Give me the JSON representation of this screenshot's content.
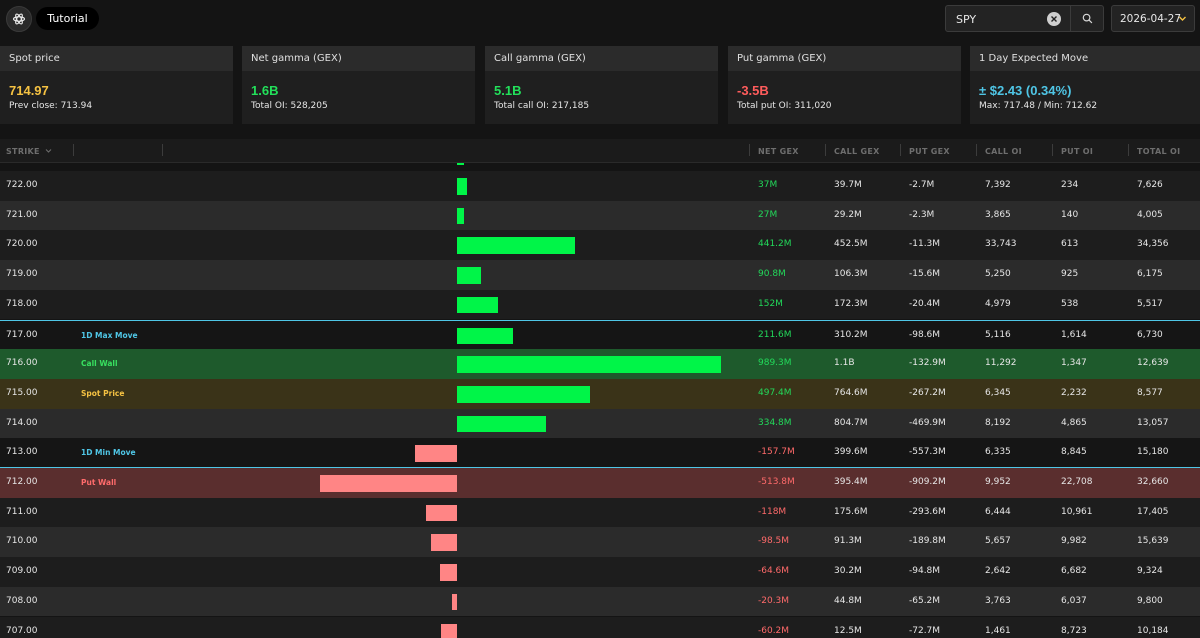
{
  "header": {
    "tutorial_label": "Tutorial",
    "search_value": "SPY",
    "date_value": "2026-04-27",
    "icons": [
      "logo-icon",
      "clear-icon",
      "search-icon",
      "chevron-down-icon"
    ]
  },
  "cards": [
    {
      "title": "Spot price",
      "value": "714.97",
      "sub": "Prev close: 713.94",
      "color": "#f5c242"
    },
    {
      "title": "Net gamma (GEX)",
      "value": "1.6B",
      "sub": "Total OI: 528,205",
      "color": "#22e05a"
    },
    {
      "title": "Call gamma (GEX)",
      "value": "5.1B",
      "sub": "Total call OI: 217,185",
      "color": "#22e05a"
    },
    {
      "title": "Put gamma (GEX)",
      "value": "-3.5B",
      "sub": "Total put OI: 311,020",
      "color": "#ff5c5c"
    },
    {
      "title": "1 Day Expected Move",
      "value": "± $2.43 (0.34%)",
      "sub": "Max: 717.48 / Min: 712.62",
      "color": "#4fc6e6"
    }
  ],
  "table": {
    "columns": [
      "STRIKE",
      "NET GEX",
      "CALL GEX",
      "PUT GEX",
      "CALL OI",
      "PUT OI",
      "TOTAL OI"
    ],
    "colors": {
      "positive": "#00f548",
      "negative": "#ff8585",
      "max_move": "#4fc6e6",
      "call_wall": "#38e060",
      "spot": "#f5c242",
      "put_wall": "#ff6b6b"
    },
    "rows": [
      {
        "strike": "722.00",
        "label": "",
        "net_gex_value": 37.0,
        "net": "37M",
        "call": "39.7M",
        "put": "-2.7M",
        "call_oi": "7,392",
        "put_oi": "234",
        "total_oi": "7,626",
        "type": "odd"
      },
      {
        "strike": "721.00",
        "label": "",
        "net_gex_value": 27.0,
        "net": "27M",
        "call": "29.2M",
        "put": "-2.3M",
        "call_oi": "3,865",
        "put_oi": "140",
        "total_oi": "4,005",
        "type": "even"
      },
      {
        "strike": "720.00",
        "label": "",
        "net_gex_value": 441.2,
        "net": "441.2M",
        "call": "452.5M",
        "put": "-11.3M",
        "call_oi": "33,743",
        "put_oi": "613",
        "total_oi": "34,356",
        "type": "odd"
      },
      {
        "strike": "719.00",
        "label": "",
        "net_gex_value": 90.8,
        "net": "90.8M",
        "call": "106.3M",
        "put": "-15.6M",
        "call_oi": "5,250",
        "put_oi": "925",
        "total_oi": "6,175",
        "type": "even"
      },
      {
        "strike": "718.00",
        "label": "",
        "net_gex_value": 152.0,
        "net": "152M",
        "call": "172.3M",
        "put": "-20.4M",
        "call_oi": "4,979",
        "put_oi": "538",
        "total_oi": "5,517",
        "type": "odd"
      },
      {
        "strike": "717.00",
        "label": "1D Max Move",
        "net_gex_value": 211.6,
        "net": "211.6M",
        "call": "310.2M",
        "put": "-98.6M",
        "call_oi": "5,116",
        "put_oi": "1,614",
        "total_oi": "6,730",
        "type": "max-move"
      },
      {
        "strike": "716.00",
        "label": "Call Wall",
        "net_gex_value": 989.3,
        "net": "989.3M",
        "call": "1.1B",
        "put": "-132.9M",
        "call_oi": "11,292",
        "put_oi": "1,347",
        "total_oi": "12,639",
        "type": "call-wall"
      },
      {
        "strike": "715.00",
        "label": "Spot Price",
        "net_gex_value": 497.4,
        "net": "497.4M",
        "call": "764.6M",
        "put": "-267.2M",
        "call_oi": "6,345",
        "put_oi": "2,232",
        "total_oi": "8,577",
        "type": "spot"
      },
      {
        "strike": "714.00",
        "label": "",
        "net_gex_value": 334.8,
        "net": "334.8M",
        "call": "804.7M",
        "put": "-469.9M",
        "call_oi": "8,192",
        "put_oi": "4,865",
        "total_oi": "13,057",
        "type": "even"
      },
      {
        "strike": "713.00",
        "label": "1D Min Move",
        "net_gex_value": -157.7,
        "net": "-157.7M",
        "call": "399.6M",
        "put": "-557.3M",
        "call_oi": "6,335",
        "put_oi": "8,845",
        "total_oi": "15,180",
        "type": "min-move"
      },
      {
        "strike": "712.00",
        "label": "Put Wall",
        "net_gex_value": -513.8,
        "net": "-513.8M",
        "call": "395.4M",
        "put": "-909.2M",
        "call_oi": "9,952",
        "put_oi": "22,708",
        "total_oi": "32,660",
        "type": "put-wall"
      },
      {
        "strike": "711.00",
        "label": "",
        "net_gex_value": -118.0,
        "net": "-118M",
        "call": "175.6M",
        "put": "-293.6M",
        "call_oi": "6,444",
        "put_oi": "10,961",
        "total_oi": "17,405",
        "type": "odd"
      },
      {
        "strike": "710.00",
        "label": "",
        "net_gex_value": -98.5,
        "net": "-98.5M",
        "call": "91.3M",
        "put": "-189.8M",
        "call_oi": "5,657",
        "put_oi": "9,982",
        "total_oi": "15,639",
        "type": "even"
      },
      {
        "strike": "709.00",
        "label": "",
        "net_gex_value": -64.6,
        "net": "-64.6M",
        "call": "30.2M",
        "put": "-94.8M",
        "call_oi": "2,642",
        "put_oi": "6,682",
        "total_oi": "9,324",
        "type": "odd"
      },
      {
        "strike": "708.00",
        "label": "",
        "net_gex_value": -20.3,
        "net": "-20.3M",
        "call": "44.8M",
        "put": "-65.2M",
        "call_oi": "3,763",
        "put_oi": "6,037",
        "total_oi": "9,800",
        "type": "even"
      },
      {
        "strike": "707.00",
        "label": "",
        "net_gex_value": -60.2,
        "net": "-60.2M",
        "call": "12.5M",
        "put": "-72.7M",
        "call_oi": "1,461",
        "put_oi": "8,723",
        "total_oi": "10,184",
        "type": "odd"
      }
    ]
  }
}
